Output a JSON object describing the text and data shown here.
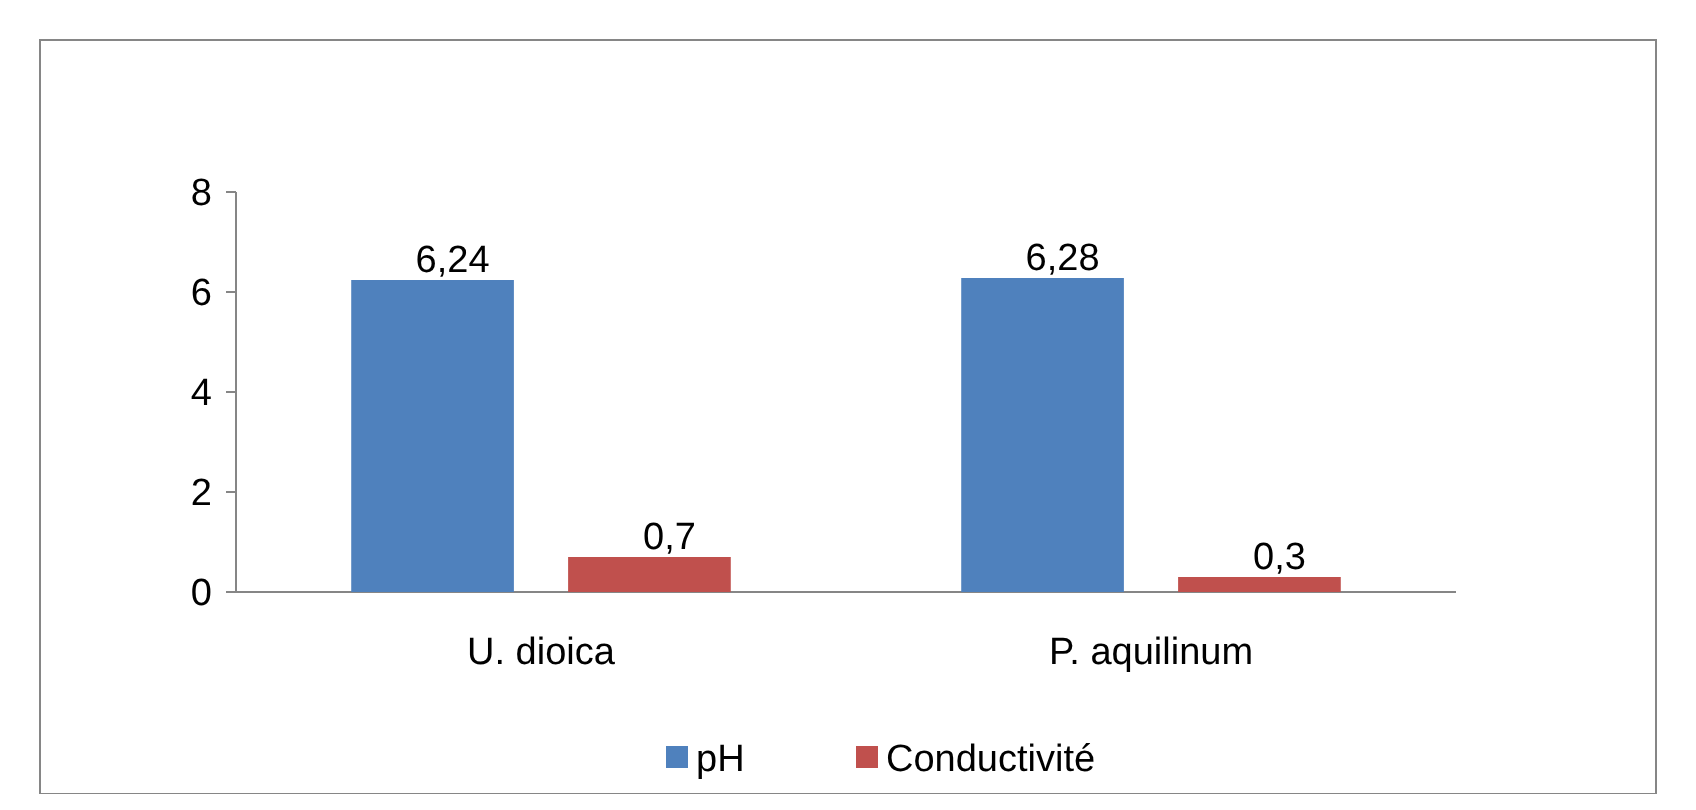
{
  "chart_data": {
    "type": "bar",
    "categories": [
      "U. dioica",
      "P. aquilinum"
    ],
    "series": [
      {
        "name": "pH",
        "color": "#4f81bd",
        "values": [
          6.24,
          6.28
        ],
        "value_labels": [
          "6,24",
          "6,28"
        ]
      },
      {
        "name": "Conductivité",
        "color": "#c0504d",
        "values": [
          0.7,
          0.3
        ],
        "value_labels": [
          "0,7",
          "0,3"
        ]
      }
    ],
    "ylim": [
      0,
      8
    ],
    "yticks": [
      0,
      2,
      4,
      6,
      8
    ],
    "grid": false,
    "legend": "bottom"
  }
}
